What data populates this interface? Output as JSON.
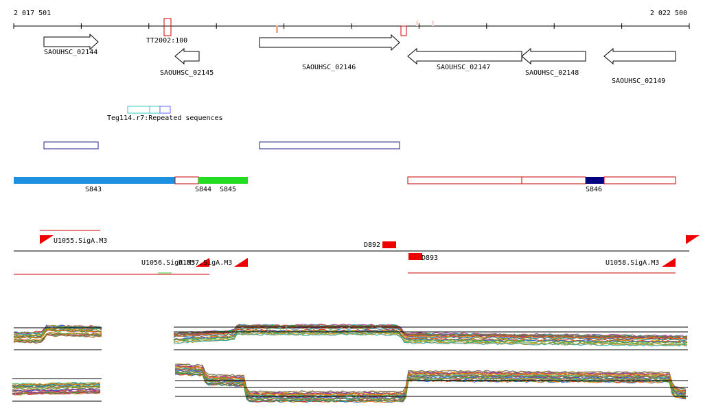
{
  "ruler": {
    "start": "2 017 501",
    "end": "2 022 500"
  },
  "annotations": {
    "transposon": "TT2002:100"
  },
  "genes": [
    "SAOUHSC_02144",
    "SAOUHSC_02145",
    "SAOUHSC_02146",
    "SAOUHSC_02147",
    "SAOUHSC_02148",
    "SAOUHSC_02149"
  ],
  "repeats": [
    "Teg114.r7:Repeated sequences"
  ],
  "segments": [
    "S843",
    "S844",
    "S845",
    "S846"
  ],
  "promoters": [
    "U1055.SigA.M3",
    "U1056.SigA.M3",
    "U1057.SigA.M3",
    "U1058.SigA.M3"
  ],
  "peaks": [
    "D892",
    "D893"
  ]
}
